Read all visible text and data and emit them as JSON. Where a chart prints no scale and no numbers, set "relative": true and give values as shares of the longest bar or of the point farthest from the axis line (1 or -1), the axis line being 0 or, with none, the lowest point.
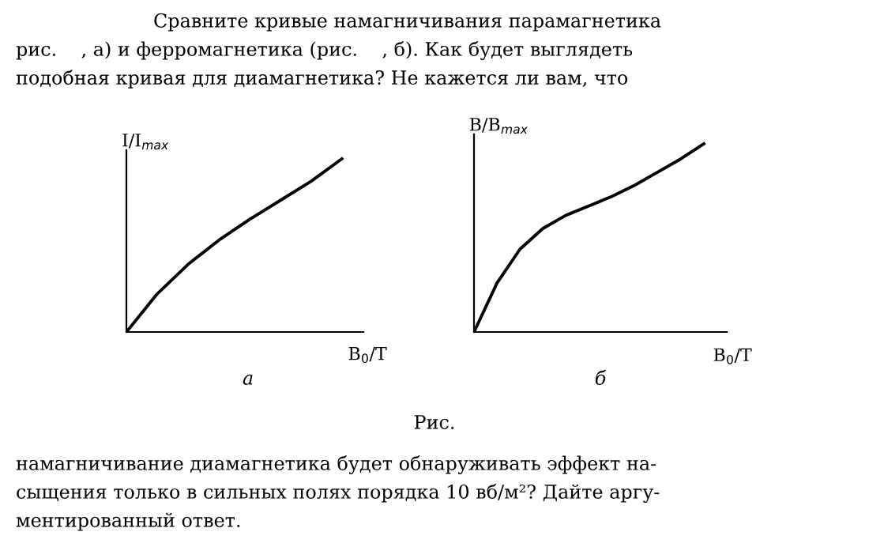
{
  "chart_data": [
    {
      "type": "line",
      "relative": true,
      "ylabel": "I/I$_{max}$",
      "xlabel": "B$_{0}$/T",
      "color": "#000000",
      "categories": [
        null,
        null,
        null,
        null,
        null,
        null,
        null,
        null
      ],
      "values": [
        0,
        0.22,
        0.39,
        0.53,
        0.65,
        0.76,
        0.87,
        1
      ],
      "annotations": [
        "Сравните кривые намагничивания парамагнетика",
        "рис.    , а) и ферромагнетика (рис.    , б). Как будет выглядеть",
        "подобная кривая для диамагнетика? Не кажется ли вам, что",
        "а"
      ]
    },
    {
      "type": "line",
      "relative": true,
      "ylabel": "B/B$_{max}$",
      "xlabel": "B$_{0}$/T",
      "color": "#000000",
      "categories": [
        null,
        null,
        null,
        null,
        null,
        null,
        null,
        null,
        null,
        null,
        null
      ],
      "values": [
        0,
        0.26,
        0.44,
        0.55,
        0.62,
        0.67,
        0.72,
        0.78,
        0.85,
        0.92,
        1
      ],
      "annotations": [
        "б",
        "Рис.",
        "намагничивание диамагнетика будет обнаруживать эффект на-",
        "сыщения только в сильных полях порядка 10 вб/м²? Дайте аргу-",
        "ментированный ответ."
      ]
    }
  ]
}
